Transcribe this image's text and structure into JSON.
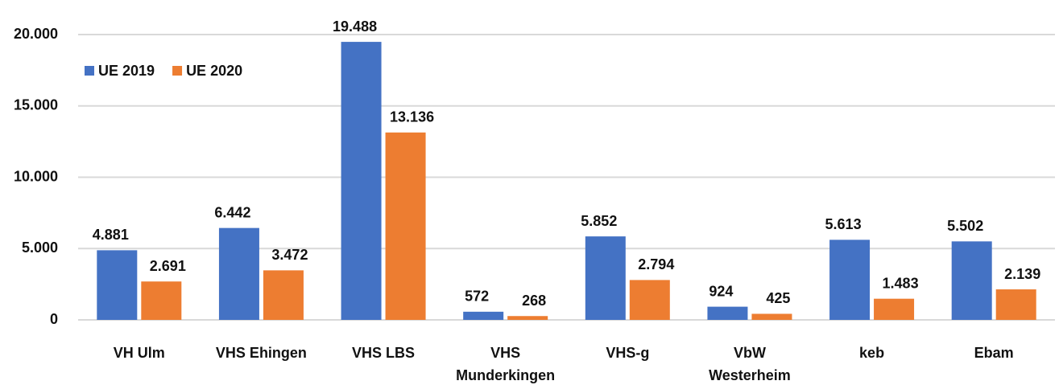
{
  "chart_data": {
    "type": "bar",
    "categories": [
      "VH Ulm",
      "VHS Ehingen",
      "VHS LBS",
      "VHS Munderkingen",
      "VHS-g",
      "VbW Westerheim",
      "keb",
      "Ebam"
    ],
    "series": [
      {
        "name": "UE 2019",
        "color": "#4472c4",
        "values": [
          4881,
          6442,
          19488,
          572,
          5852,
          924,
          5613,
          5502
        ],
        "value_labels": [
          "4.881",
          "6.442",
          "19.488",
          "572",
          "5.852",
          "924",
          "5.613",
          "5.502"
        ]
      },
      {
        "name": "UE 2020",
        "color": "#ed7d31",
        "values": [
          2691,
          3472,
          13136,
          268,
          2794,
          425,
          1483,
          2139
        ],
        "value_labels": [
          "2.691",
          "3.472",
          "13.136",
          "268",
          "2.794",
          "425",
          "1.483",
          "2.139"
        ]
      }
    ],
    "ylim": [
      0,
      20000
    ],
    "yticks": [
      0,
      {
        "value": 5000,
        "label": "5.000"
      },
      {
        "value": 10000,
        "label": "10.000"
      },
      {
        "value": 15000,
        "label": "15.000"
      },
      {
        "value": 20000,
        "label": "20.000"
      }
    ],
    "grid": true,
    "legend": "top-left"
  }
}
